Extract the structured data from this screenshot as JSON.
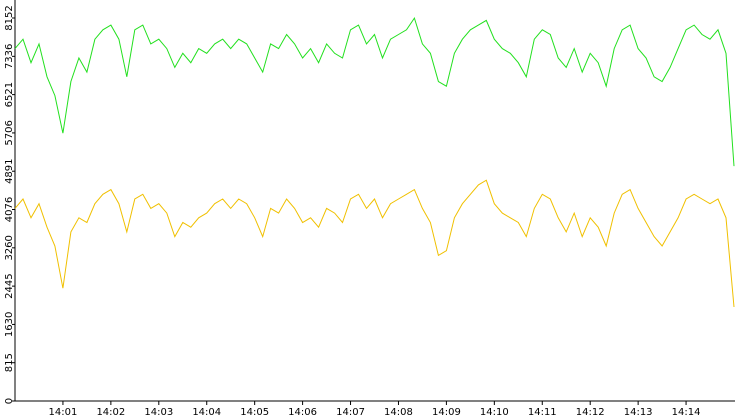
{
  "chart_data": {
    "type": "line",
    "categories": [
      null,
      null,
      null,
      null,
      null,
      null,
      "14:01",
      null,
      null,
      null,
      null,
      null,
      "14:02",
      null,
      null,
      null,
      null,
      null,
      "14:03",
      null,
      null,
      null,
      null,
      null,
      "14:04",
      null,
      null,
      null,
      null,
      null,
      "14:05",
      null,
      null,
      null,
      null,
      null,
      "14:06",
      null,
      null,
      null,
      null,
      null,
      "14:07",
      null,
      null,
      null,
      null,
      null,
      "14:08",
      null,
      null,
      null,
      null,
      null,
      "14:09",
      null,
      null,
      null,
      null,
      null,
      "14:10",
      null,
      null,
      null,
      null,
      null,
      "14:11",
      null,
      null,
      null,
      null,
      null,
      "14:12",
      null,
      null,
      null,
      null,
      null,
      "14:13",
      null,
      null,
      null,
      null,
      null,
      "14:14",
      null,
      null,
      null,
      null,
      null,
      null
    ],
    "series": [
      {
        "color": "#22e01e",
        "values": [
          7500,
          7700,
          7200,
          7600,
          6900,
          6500,
          5700,
          6800,
          7300,
          7000,
          7700,
          7900,
          8000,
          7700,
          6900,
          7900,
          8000,
          7600,
          7700,
          7500,
          7100,
          7400,
          7200,
          7500,
          7400,
          7600,
          7700,
          7500,
          7700,
          7600,
          7300,
          7000,
          7600,
          7500,
          7800,
          7600,
          7300,
          7500,
          7200,
          7600,
          7400,
          7300,
          7900,
          8000,
          7600,
          7800,
          7300,
          7700,
          7800,
          7900,
          8150,
          7600,
          7400,
          6800,
          6700,
          7400,
          7700,
          7900,
          8000,
          8100,
          7700,
          7500,
          7400,
          7200,
          6900,
          7700,
          7900,
          7800,
          7300,
          7100,
          7500,
          7000,
          7400,
          7200,
          6700,
          7500,
          7900,
          8000,
          7500,
          7300,
          6900,
          6800,
          7100,
          7500,
          7900,
          8000,
          7800,
          7700,
          7900,
          7400,
          5000
        ]
      },
      {
        "color": "#f0c000",
        "values": [
          4100,
          4300,
          3900,
          4200,
          3700,
          3300,
          2400,
          3600,
          3900,
          3800,
          4200,
          4400,
          4500,
          4200,
          3600,
          4300,
          4400,
          4100,
          4200,
          4000,
          3500,
          3800,
          3700,
          3900,
          4000,
          4200,
          4300,
          4100,
          4300,
          4200,
          3900,
          3500,
          4100,
          4000,
          4300,
          4100,
          3800,
          3900,
          3700,
          4100,
          4000,
          3800,
          4300,
          4400,
          4100,
          4300,
          3900,
          4200,
          4300,
          4400,
          4500,
          4100,
          3800,
          3100,
          3200,
          3900,
          4200,
          4400,
          4600,
          4700,
          4200,
          4000,
          3900,
          3800,
          3500,
          4100,
          4400,
          4300,
          3900,
          3600,
          4000,
          3500,
          3900,
          3700,
          3300,
          4000,
          4400,
          4500,
          4100,
          3800,
          3500,
          3300,
          3600,
          3900,
          4300,
          4400,
          4300,
          4200,
          4300,
          3900,
          2000
        ]
      }
    ],
    "ylim": [
      0,
      8152
    ],
    "yticks": [
      0,
      815,
      1630,
      2445,
      3260,
      4076,
      4891,
      5706,
      6521,
      7336,
      8152
    ]
  }
}
